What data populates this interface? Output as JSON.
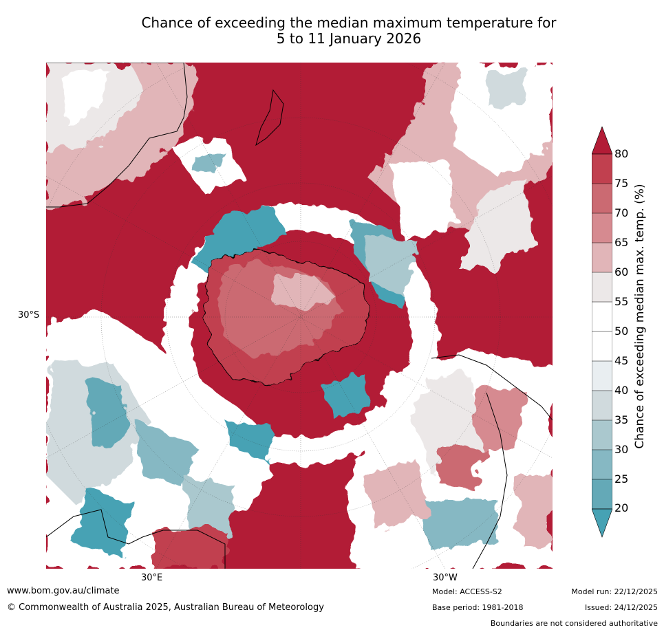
{
  "title": {
    "line1": "Chance of exceeding the median maximum temperature for",
    "line2": "5 to 11 January 2026"
  },
  "map": {
    "projection": "south-polar stereographic",
    "axis_labels": {
      "lat_left": "30°S",
      "lon_bottom_left": "30°E",
      "lon_bottom_right": "30°W"
    }
  },
  "colorbar": {
    "label": "Chance of exceeding median max. temp. (%)",
    "ticks": [
      "80",
      "75",
      "70",
      "65",
      "60",
      "55",
      "50",
      "45",
      "40",
      "35",
      "30",
      "25",
      "20"
    ],
    "colors": {
      "above_80": "#b21c36",
      "75_80": "#c1404f",
      "70_75": "#cb6a72",
      "65_70": "#d68a90",
      "60_65": "#e1b5b8",
      "55_60": "#ece8e8",
      "50_55": "#ffffff",
      "45_50": "#ffffff",
      "40_45": "#e9eef1",
      "35_40": "#d0dadd",
      "30_35": "#aac8ce",
      "25_30": "#86b8c3",
      "20_25": "#64a9b7",
      "below_20": "#46a2b4"
    }
  },
  "footer": {
    "website": "www.bom.gov.au/climate",
    "copyright": "© Commonwealth of Australia 2025, Australian Bureau of Meteorology",
    "model": "Model: ACCESS-S2",
    "base_period": "Base period: 1981-2018",
    "model_run": "Model run: 22/12/2025",
    "issued": "Issued: 24/12/2025",
    "disclaimer": "Boundaries are not considered authoritative"
  }
}
